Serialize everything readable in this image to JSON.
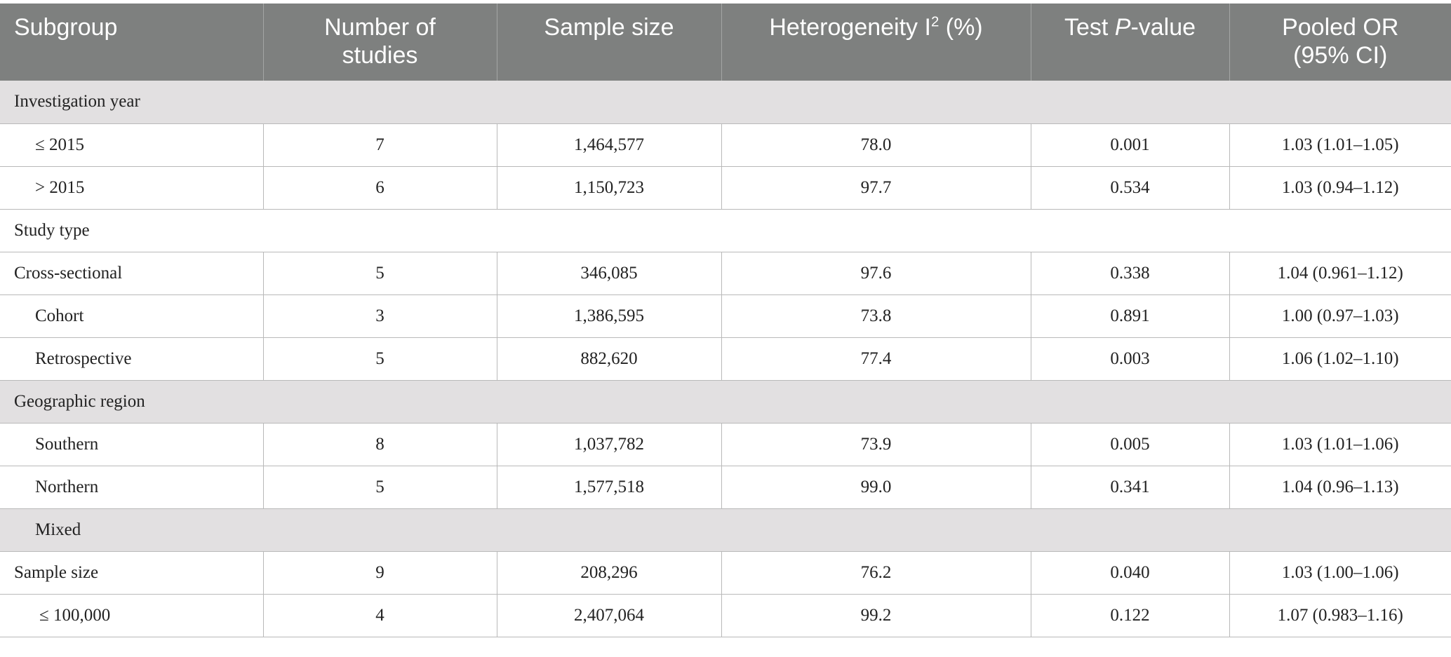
{
  "headers": {
    "subgroup": "Subgroup",
    "studies_line1": "Number of",
    "studies_line2": "studies",
    "sample_size": "Sample size",
    "heterogeneity_pre": "Heterogeneity I",
    "heterogeneity_sup": "2",
    "heterogeneity_post": " (%)",
    "test_pre": "Test ",
    "test_italic": "P",
    "test_post": "-value",
    "pooled_line1": "Pooled OR",
    "pooled_line2": "(95% CI)"
  },
  "rows": [
    {
      "section": "Investigation year"
    },
    {
      "label": "≤ 2015",
      "studies": "7",
      "sample": "1,464,577",
      "i2": "78.0",
      "p": "0.001",
      "or": "1.03 (1.01–1.05)"
    },
    {
      "label": "> 2015",
      "studies": "6",
      "sample": "1,150,723",
      "i2": "97.7",
      "p": "0.534",
      "or": "1.03 (0.94–1.12)"
    },
    {
      "section": "Study type"
    },
    {
      "label": "Cross-sectional",
      "studies": "5",
      "sample": "346,085",
      "i2": "97.6",
      "p": "0.338",
      "or": "1.04 (0.961–1.12)"
    },
    {
      "label": "Cohort",
      "studies": "3",
      "sample": "1,386,595",
      "i2": "73.8",
      "p": "0.891",
      "or": "1.00 (0.97–1.03)"
    },
    {
      "label": "Retrospective",
      "studies": "5",
      "sample": "882,620",
      "i2": "77.4",
      "p": "0.003",
      "or": "1.06 (1.02–1.10)"
    },
    {
      "section": "Geographic region"
    },
    {
      "label": "Southern",
      "studies": "8",
      "sample": "1,037,782",
      "i2": "73.9",
      "p": "0.005",
      "or": "1.03 (1.01–1.06)"
    },
    {
      "label": "Northern",
      "studies": "5",
      "sample": "1,577,518",
      "i2": "99.0",
      "p": "0.341",
      "or": "1.04 (0.96–1.13)"
    },
    {
      "section": "Mixed"
    },
    {
      "label": "Sample size",
      "studies": "9",
      "sample": "208,296",
      "i2": "76.2",
      "p": "0.040",
      "or": "1.03 (1.00–1.06)"
    },
    {
      "label": "≤ 100,000",
      "studies": "4",
      "sample": "2,407,064",
      "i2": "99.2",
      "p": "0.122",
      "or": "1.07 (0.983–1.16)"
    }
  ]
}
